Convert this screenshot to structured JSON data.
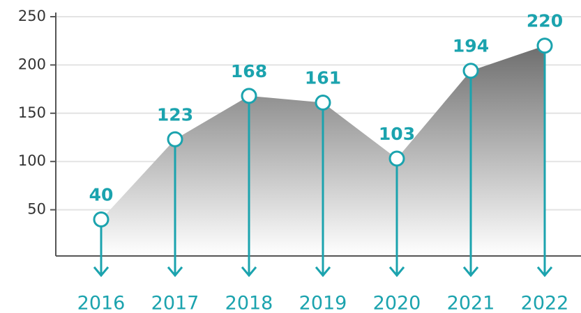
{
  "chart_data": {
    "type": "area",
    "categories": [
      "2016",
      "2017",
      "2018",
      "2019",
      "2020",
      "2021",
      "2022"
    ],
    "values": [
      40,
      123,
      168,
      161,
      103,
      194,
      220
    ],
    "color": "#1ba3ae",
    "ylim": [
      0,
      250
    ],
    "yticks": [
      50,
      100,
      150,
      200,
      250
    ],
    "grid": true
  }
}
